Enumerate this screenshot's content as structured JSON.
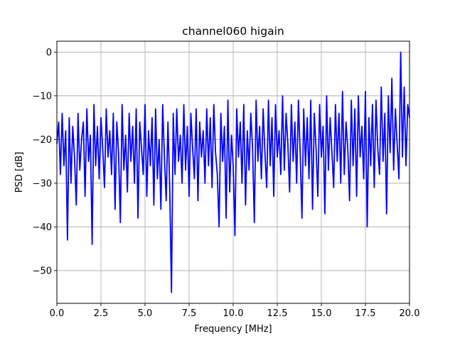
{
  "chart_data": {
    "type": "line",
    "title": "channel060 higain",
    "xlabel": "Frequency [MHz]",
    "ylabel": "PSD [dB]",
    "xlim": [
      0,
      20
    ],
    "ylim": [
      -57.5,
      2.5
    ],
    "grid": true,
    "xticks": [
      {
        "value": 0,
        "label": "0.0"
      },
      {
        "value": 2.5,
        "label": "2.5"
      },
      {
        "value": 5,
        "label": "5.0"
      },
      {
        "value": 7.5,
        "label": "7.5"
      },
      {
        "value": 10,
        "label": "10.0"
      },
      {
        "value": 12.5,
        "label": "12.5"
      },
      {
        "value": 15,
        "label": "15.0"
      },
      {
        "value": 17.5,
        "label": "17.5"
      },
      {
        "value": 20,
        "label": "20.0"
      }
    ],
    "yticks": [
      {
        "value": 0,
        "label": "0"
      },
      {
        "value": -10,
        "label": "−10"
      },
      {
        "value": -20,
        "label": "−20"
      },
      {
        "value": -30,
        "label": "−30"
      },
      {
        "value": -40,
        "label": "−40"
      },
      {
        "value": -50,
        "label": "−50"
      }
    ],
    "series": [
      {
        "color": "#0000ff",
        "x": [
          0,
          0.1,
          0.2,
          0.3,
          0.4,
          0.5,
          0.6,
          0.7,
          0.8,
          0.9,
          1.0,
          1.1,
          1.2,
          1.3,
          1.4,
          1.5,
          1.6,
          1.7,
          1.8,
          1.9,
          2.0,
          2.1,
          2.2,
          2.3,
          2.4,
          2.5,
          2.6,
          2.7,
          2.8,
          2.9,
          3.0,
          3.1,
          3.2,
          3.3,
          3.4,
          3.5,
          3.6,
          3.7,
          3.8,
          3.9,
          4.0,
          4.1,
          4.2,
          4.3,
          4.4,
          4.5,
          4.6,
          4.7,
          4.8,
          4.9,
          5.0,
          5.1,
          5.2,
          5.3,
          5.4,
          5.5,
          5.6,
          5.7,
          5.8,
          5.9,
          6.0,
          6.1,
          6.2,
          6.3,
          6.4,
          6.5,
          6.6,
          6.7,
          6.8,
          6.9,
          7.0,
          7.1,
          7.2,
          7.3,
          7.4,
          7.5,
          7.6,
          7.7,
          7.8,
          7.9,
          8.0,
          8.1,
          8.2,
          8.3,
          8.4,
          8.5,
          8.6,
          8.7,
          8.8,
          8.9,
          9.0,
          9.1,
          9.2,
          9.3,
          9.4,
          9.5,
          9.6,
          9.7,
          9.8,
          9.9,
          10.0,
          10.1,
          10.2,
          10.3,
          10.4,
          10.5,
          10.6,
          10.7,
          10.8,
          10.9,
          11.0,
          11.1,
          11.2,
          11.3,
          11.4,
          11.5,
          11.6,
          11.7,
          11.8,
          11.9,
          12.0,
          12.1,
          12.2,
          12.3,
          12.4,
          12.5,
          12.6,
          12.7,
          12.8,
          12.9,
          13.0,
          13.1,
          13.2,
          13.3,
          13.4,
          13.5,
          13.6,
          13.7,
          13.8,
          13.9,
          14.0,
          14.1,
          14.2,
          14.3,
          14.4,
          14.5,
          14.6,
          14.7,
          14.8,
          14.9,
          15.0,
          15.1,
          15.2,
          15.3,
          15.4,
          15.5,
          15.6,
          15.7,
          15.8,
          15.9,
          16.0,
          16.1,
          16.2,
          16.3,
          16.4,
          16.5,
          16.6,
          16.7,
          16.8,
          16.9,
          17.0,
          17.1,
          17.2,
          17.3,
          17.4,
          17.5,
          17.6,
          17.7,
          17.8,
          17.9,
          18.0,
          18.1,
          18.2,
          18.3,
          18.4,
          18.5,
          18.6,
          18.7,
          18.8,
          18.9,
          19.0,
          19.1,
          19.2,
          19.3,
          19.4,
          19.5,
          19.6,
          19.7,
          19.8,
          19.9,
          20.0
        ],
        "y": [
          -21,
          -16,
          -28,
          -14,
          -26,
          -18,
          -43,
          -15,
          -30,
          -17,
          -24,
          -35,
          -14,
          -27,
          -20,
          -16,
          -33,
          -13,
          -25,
          -19,
          -44,
          -12,
          -26,
          -17,
          -29,
          -15,
          -22,
          -31,
          -13,
          -24,
          -18,
          -28,
          -14,
          -36,
          -16,
          -23,
          -39,
          -12,
          -27,
          -19,
          -32,
          -14,
          -25,
          -17,
          -30,
          -13,
          -38,
          -16,
          -22,
          -28,
          -12,
          -33,
          -18,
          -26,
          -15,
          -35,
          -13,
          -29,
          -20,
          -36,
          -12,
          -24,
          -34,
          -16,
          -31,
          -55,
          -14,
          -28,
          -13,
          -25,
          -19,
          -30,
          -12,
          -27,
          -17,
          -33,
          -14,
          -22,
          -29,
          -13,
          -34,
          -16,
          -24,
          -18,
          -30,
          -13,
          -26,
          -15,
          -31,
          -12,
          -23,
          -28,
          -40,
          -14,
          -25,
          -17,
          -38,
          -11,
          -32,
          -19,
          -26,
          -42,
          -13,
          -24,
          -16,
          -30,
          -12,
          -35,
          -18,
          -27,
          -14,
          -22,
          -39,
          -11,
          -25,
          -17,
          -29,
          -13,
          -23,
          -31,
          -11,
          -26,
          -15,
          -33,
          -12,
          -24,
          -18,
          -28,
          -10,
          -27,
          -14,
          -21,
          -32,
          -12,
          -25,
          -16,
          -30,
          -11,
          -23,
          -38,
          -13,
          -26,
          -15,
          -29,
          -11,
          -36,
          -14,
          -22,
          -33,
          -12,
          -24,
          -17,
          -37,
          -10,
          -27,
          -15,
          -23,
          -31,
          -12,
          -25,
          -14,
          -30,
          -9,
          -28,
          -16,
          -22,
          -34,
          -11,
          -26,
          -13,
          -33,
          -10,
          -24,
          -17,
          -29,
          -9,
          -40,
          -15,
          -26,
          -12,
          -31,
          -11,
          -22,
          -28,
          -8,
          -25,
          -14,
          -37,
          -10,
          -23,
          -6,
          -27,
          -13,
          -21,
          -29,
          0,
          -24,
          -8,
          -26,
          -12,
          -15
        ]
      }
    ]
  }
}
